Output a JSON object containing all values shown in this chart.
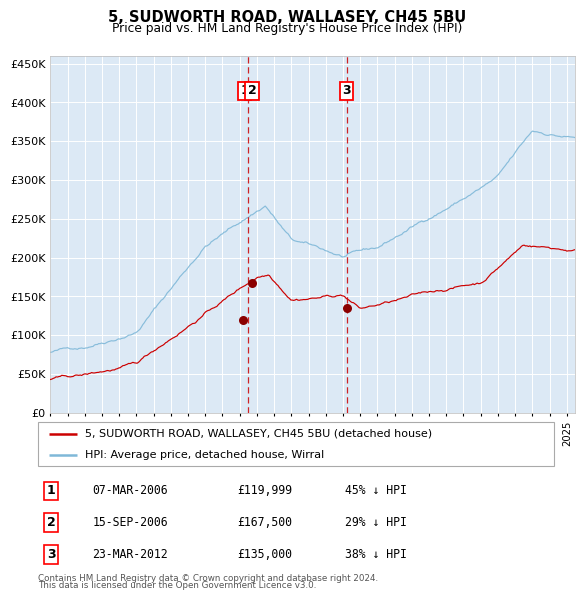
{
  "title": "5, SUDWORTH ROAD, WALLASEY, CH45 5BU",
  "subtitle": "Price paid vs. HM Land Registry's House Price Index (HPI)",
  "background_color": "#ffffff",
  "plot_bg_color": "#dce9f5",
  "grid_color": "#ffffff",
  "hpi_color": "#7fb8d8",
  "price_color": "#cc0000",
  "marker_color": "#8b0000",
  "ylim": [
    0,
    460000
  ],
  "yticks": [
    0,
    50000,
    100000,
    150000,
    200000,
    250000,
    300000,
    350000,
    400000,
    450000
  ],
  "ytick_labels": [
    "£0",
    "£50K",
    "£100K",
    "£150K",
    "£200K",
    "£250K",
    "£300K",
    "£350K",
    "£400K",
    "£450K"
  ],
  "transactions": [
    {
      "num": 1,
      "date_label": "07-MAR-2006",
      "price": 119999,
      "hpi_diff": "45% ↓ HPI",
      "x_year": 2006.18
    },
    {
      "num": 2,
      "date_label": "15-SEP-2006",
      "price": 167500,
      "hpi_diff": "29% ↓ HPI",
      "x_year": 2006.71
    },
    {
      "num": 3,
      "date_label": "23-MAR-2012",
      "price": 135000,
      "hpi_diff": "38% ↓ HPI",
      "x_year": 2012.22
    }
  ],
  "vline_x1": 2006.5,
  "vline_x2": 2012.22,
  "legend_entries": [
    {
      "label": "5, SUDWORTH ROAD, WALLASEY, CH45 5BU (detached house)",
      "color": "#cc0000"
    },
    {
      "label": "HPI: Average price, detached house, Wirral",
      "color": "#7fb8d8"
    }
  ],
  "footnote_line1": "Contains HM Land Registry data © Crown copyright and database right 2024.",
  "footnote_line2": "This data is licensed under the Open Government Licence v3.0.",
  "xlim_start": 1995.0,
  "xlim_end": 2025.5
}
